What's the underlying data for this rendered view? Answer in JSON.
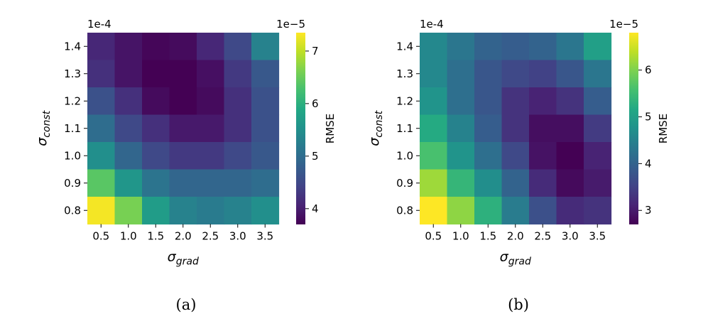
{
  "chart_data": [
    {
      "type": "heatmap",
      "caption": "(a)",
      "x_tick_labels": [
        "0.5",
        "1.0",
        "1.5",
        "2.0",
        "2.5",
        "3.0",
        "3.5"
      ],
      "y_tick_labels": [
        "1.4",
        "1.3",
        "1.2",
        "1.1",
        "1.0",
        "0.9",
        "0.8"
      ],
      "x_axis_label": {
        "base": "σ",
        "sub": "grad"
      },
      "y_axis_label": {
        "base": "σ",
        "sub": "const"
      },
      "axis_exponent_label": "1e-4",
      "colorbar": {
        "label": "RMSE",
        "exponent_label": "1e−5",
        "range": [
          3.7,
          7.35
        ],
        "ticks": [
          4,
          5,
          6,
          7
        ],
        "tick_labels": [
          "4",
          "5",
          "6",
          "7"
        ]
      },
      "values": [
        [
          4.1,
          3.9,
          3.75,
          3.8,
          4.1,
          4.5,
          5.3
        ],
        [
          4.2,
          3.9,
          3.7,
          3.7,
          3.85,
          4.3,
          4.7
        ],
        [
          4.6,
          4.2,
          3.8,
          3.7,
          3.8,
          4.2,
          4.6
        ],
        [
          5.0,
          4.5,
          4.2,
          3.95,
          3.95,
          4.2,
          4.6
        ],
        [
          5.5,
          4.9,
          4.5,
          4.3,
          4.3,
          4.5,
          4.7
        ],
        [
          6.4,
          5.6,
          5.1,
          4.9,
          4.9,
          4.9,
          5.0
        ],
        [
          7.3,
          6.6,
          5.7,
          5.3,
          5.2,
          5.3,
          5.5
        ]
      ]
    },
    {
      "type": "heatmap",
      "caption": "(b)",
      "x_tick_labels": [
        "0.5",
        "1.0",
        "1.5",
        "2.0",
        "2.5",
        "3.0",
        "3.5"
      ],
      "y_tick_labels": [
        "1.4",
        "1.3",
        "1.2",
        "1.1",
        "1.0",
        "0.9",
        "0.8"
      ],
      "x_axis_label": {
        "base": "σ",
        "sub": "grad"
      },
      "y_axis_label": {
        "base": "σ",
        "sub": "const"
      },
      "axis_exponent_label": "1e-4",
      "colorbar": {
        "label": "RMSE",
        "exponent_label": "1e−5",
        "range": [
          2.7,
          6.8
        ],
        "ticks": [
          3,
          4,
          5,
          6
        ],
        "tick_labels": [
          "3",
          "4",
          "5",
          "6"
        ]
      },
      "values": [
        [
          4.6,
          4.3,
          4.0,
          3.9,
          4.0,
          4.3,
          5.0
        ],
        [
          4.6,
          4.2,
          3.8,
          3.6,
          3.5,
          3.8,
          4.3
        ],
        [
          4.8,
          4.2,
          3.8,
          3.3,
          3.1,
          3.3,
          3.9
        ],
        [
          5.2,
          4.5,
          3.9,
          3.3,
          2.85,
          2.85,
          3.4
        ],
        [
          5.6,
          4.8,
          4.2,
          3.6,
          2.9,
          2.7,
          3.1
        ],
        [
          6.2,
          5.4,
          4.7,
          4.0,
          3.2,
          2.8,
          3.0
        ],
        [
          6.8,
          6.1,
          5.3,
          4.4,
          3.7,
          3.2,
          3.3
        ]
      ]
    }
  ]
}
